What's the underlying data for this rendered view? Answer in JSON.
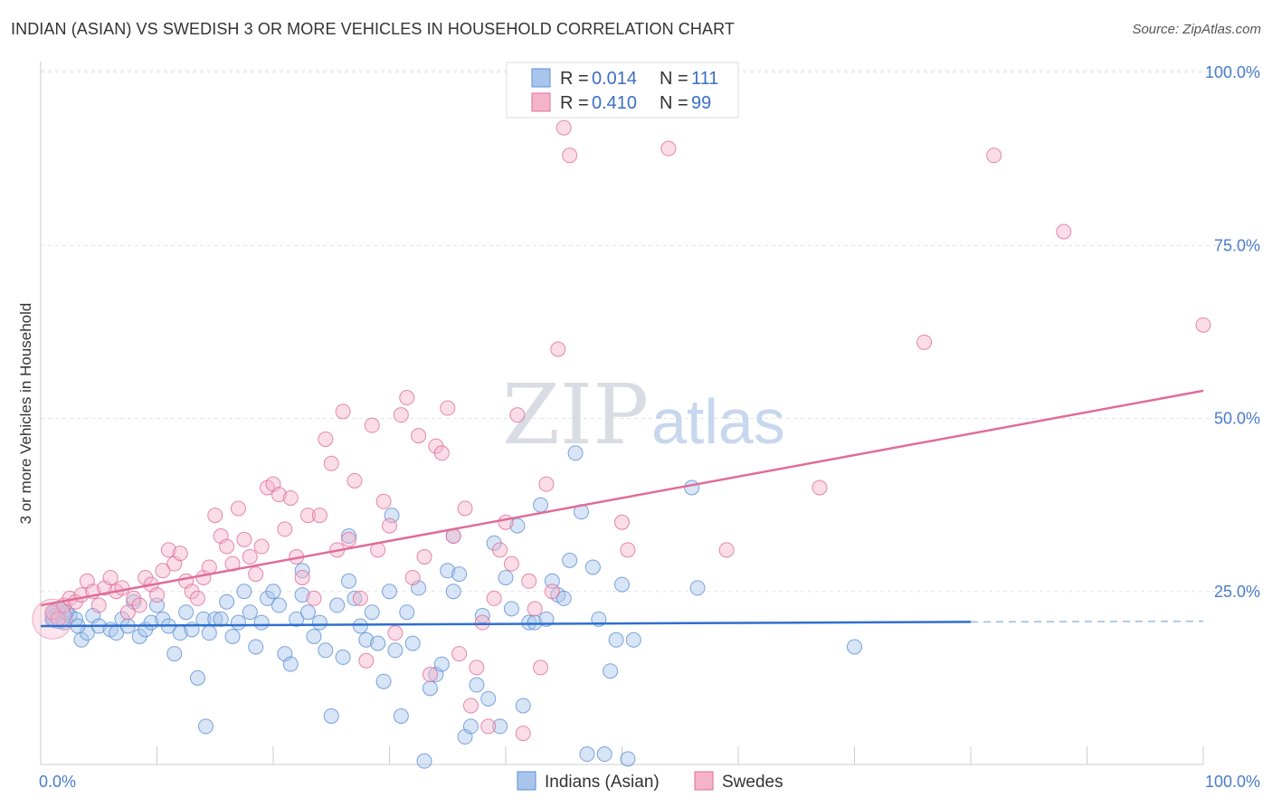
{
  "title": "INDIAN (ASIAN) VS SWEDISH 3 OR MORE VEHICLES IN HOUSEHOLD CORRELATION CHART",
  "source": "Source: ZipAtlas.com",
  "watermark": {
    "zip": "ZIP",
    "atlas": "atlas"
  },
  "colors": {
    "blue": "#5b8fd6",
    "blue_fill": "#a9c5ec",
    "pink": "#e06c98",
    "pink_fill": "#f4b3c9",
    "axis_text": "#4a7cc9"
  },
  "legend": {
    "row1": {
      "r_label": "R = ",
      "r_value": "0.014",
      "n_label": "N = ",
      "n_value": "111"
    },
    "row2": {
      "r_label": "R = ",
      "r_value": "0.410",
      "n_label": "N = ",
      "n_value": "99"
    }
  },
  "bottom_legend": {
    "series1": "Indians (Asian)",
    "series2": "Swedes"
  },
  "chart_data": {
    "type": "scatter",
    "ylabel": "3 or more Vehicles in Household",
    "x_tick_labels": [
      "0.0%",
      "100.0%"
    ],
    "y_tick_labels": [
      "25.0%",
      "50.0%",
      "75.0%",
      "100.0%"
    ],
    "y_ticks": [
      25,
      50,
      75,
      100
    ],
    "xlim": [
      0,
      100
    ],
    "ylim": [
      0,
      100
    ],
    "grid": true,
    "legend_position": "top-center",
    "series": [
      {
        "name": "Indians (Asian)",
        "color": "#5b8fd6",
        "R": 0.014,
        "N": 111,
        "trend": {
          "x0": 0,
          "y0": 20.0,
          "x1": 80,
          "y1": 20.6,
          "dashed_to": 100,
          "dashed_y": 20.7
        },
        "points": [
          [
            1,
            21
          ],
          [
            1.5,
            22
          ],
          [
            2,
            20.5
          ],
          [
            2.5,
            21.5
          ],
          [
            3,
            21
          ],
          [
            3.5,
            18
          ],
          [
            4,
            19
          ],
          [
            4.5,
            21.5
          ],
          [
            5,
            20
          ],
          [
            6,
            19.5
          ],
          [
            6.5,
            19
          ],
          [
            7,
            21
          ],
          [
            7.5,
            20
          ],
          [
            8,
            23.5
          ],
          [
            8.5,
            18.5
          ],
          [
            9,
            19.5
          ],
          [
            9.5,
            20.5
          ],
          [
            10,
            23
          ],
          [
            10.5,
            21
          ],
          [
            11,
            20
          ],
          [
            11.5,
            16
          ],
          [
            12,
            19
          ],
          [
            12.5,
            22
          ],
          [
            13,
            19.5
          ],
          [
            13.5,
            12.5
          ],
          [
            14,
            21
          ],
          [
            14.5,
            19
          ],
          [
            15,
            21
          ],
          [
            15.5,
            21
          ],
          [
            16,
            23.5
          ],
          [
            16.5,
            18.5
          ],
          [
            17,
            20.5
          ],
          [
            17.5,
            25
          ],
          [
            18,
            22
          ],
          [
            18.5,
            17
          ],
          [
            19,
            20.5
          ],
          [
            19.5,
            24
          ],
          [
            20,
            25
          ],
          [
            20.5,
            23
          ],
          [
            21,
            16
          ],
          [
            21.5,
            14.5
          ],
          [
            22,
            21
          ],
          [
            22.5,
            24.5
          ],
          [
            23,
            22
          ],
          [
            23.5,
            18.5
          ],
          [
            24,
            20.5
          ],
          [
            24.5,
            16.5
          ],
          [
            25,
            7
          ],
          [
            25.5,
            23
          ],
          [
            26,
            15.5
          ],
          [
            26.5,
            26.5
          ],
          [
            27,
            24
          ],
          [
            27.5,
            20
          ],
          [
            28,
            18
          ],
          [
            28.5,
            22
          ],
          [
            29,
            17.5
          ],
          [
            29.5,
            12
          ],
          [
            30,
            25
          ],
          [
            30.5,
            16.5
          ],
          [
            31,
            7
          ],
          [
            31.5,
            22
          ],
          [
            32,
            17.5
          ],
          [
            32.5,
            25.5
          ],
          [
            33,
            0.5
          ],
          [
            33.5,
            11
          ],
          [
            34,
            13
          ],
          [
            34.5,
            14.5
          ],
          [
            35,
            28
          ],
          [
            35.5,
            25
          ],
          [
            36,
            27.5
          ],
          [
            36.5,
            4
          ],
          [
            37,
            5.5
          ],
          [
            37.5,
            11.5
          ],
          [
            38,
            21.5
          ],
          [
            38.5,
            9.5
          ],
          [
            39,
            32
          ],
          [
            39.5,
            5.5
          ],
          [
            40,
            27
          ],
          [
            40.5,
            22.5
          ],
          [
            41,
            34.5
          ],
          [
            41.5,
            8.5
          ],
          [
            42,
            20.5
          ],
          [
            42.5,
            20.5
          ],
          [
            43,
            37.5
          ],
          [
            43.5,
            21
          ],
          [
            44,
            26.5
          ],
          [
            44.5,
            24.5
          ],
          [
            45,
            24
          ],
          [
            45.5,
            29.5
          ],
          [
            46,
            45
          ],
          [
            46.5,
            36.5
          ],
          [
            47,
            1.5
          ],
          [
            47.5,
            28.5
          ],
          [
            48,
            21
          ],
          [
            48.5,
            1.5
          ],
          [
            49,
            13.5
          ],
          [
            49.5,
            18
          ],
          [
            50,
            26
          ],
          [
            50.5,
            0.8
          ],
          [
            51,
            18
          ],
          [
            1.2,
            21.5
          ],
          [
            2.2,
            22
          ],
          [
            3.2,
            20
          ],
          [
            14.2,
            5.5
          ],
          [
            22.5,
            28
          ],
          [
            26.5,
            33
          ],
          [
            30.2,
            36
          ],
          [
            35.5,
            33
          ],
          [
            56,
            40
          ],
          [
            56.5,
            25.5
          ],
          [
            70,
            17
          ]
        ]
      },
      {
        "name": "Swedes",
        "color": "#e06c98",
        "R": 0.41,
        "N": 99,
        "trend": {
          "x0": 0,
          "y0": 23.0,
          "x1": 100,
          "y1": 54.0
        },
        "points": [
          [
            1,
            22
          ],
          [
            1.5,
            21
          ],
          [
            2,
            23
          ],
          [
            2.5,
            24
          ],
          [
            3,
            23.5
          ],
          [
            3.5,
            24.5
          ],
          [
            4,
            26.5
          ],
          [
            4.5,
            25
          ],
          [
            5,
            23
          ],
          [
            5.5,
            25.5
          ],
          [
            6,
            27
          ],
          [
            6.5,
            25
          ],
          [
            7,
            25.5
          ],
          [
            7.5,
            22
          ],
          [
            8,
            24
          ],
          [
            8.5,
            23
          ],
          [
            9,
            27
          ],
          [
            9.5,
            26
          ],
          [
            10,
            24.5
          ],
          [
            10.5,
            28
          ],
          [
            11,
            31
          ],
          [
            11.5,
            29
          ],
          [
            12,
            30.5
          ],
          [
            12.5,
            26.5
          ],
          [
            13,
            25
          ],
          [
            13.5,
            24
          ],
          [
            14,
            27
          ],
          [
            14.5,
            28.5
          ],
          [
            15,
            36
          ],
          [
            15.5,
            33
          ],
          [
            16,
            31.5
          ],
          [
            16.5,
            29
          ],
          [
            17,
            37
          ],
          [
            17.5,
            32.5
          ],
          [
            18,
            30
          ],
          [
            18.5,
            27.5
          ],
          [
            19,
            31.5
          ],
          [
            19.5,
            40
          ],
          [
            20,
            40.5
          ],
          [
            20.5,
            39
          ],
          [
            21,
            34
          ],
          [
            21.5,
            38.5
          ],
          [
            22,
            30
          ],
          [
            22.5,
            27
          ],
          [
            23,
            36
          ],
          [
            23.5,
            24
          ],
          [
            24,
            36
          ],
          [
            24.5,
            47
          ],
          [
            25,
            43.5
          ],
          [
            25.5,
            31
          ],
          [
            26,
            51
          ],
          [
            26.5,
            32.5
          ],
          [
            27,
            41
          ],
          [
            27.5,
            24
          ],
          [
            28,
            15
          ],
          [
            28.5,
            49
          ],
          [
            29,
            31
          ],
          [
            29.5,
            38
          ],
          [
            30,
            34.5
          ],
          [
            30.5,
            19
          ],
          [
            31,
            50.5
          ],
          [
            31.5,
            53
          ],
          [
            32,
            27
          ],
          [
            32.5,
            47.5
          ],
          [
            33,
            30
          ],
          [
            33.5,
            13
          ],
          [
            34,
            46
          ],
          [
            34.5,
            45
          ],
          [
            35,
            51.5
          ],
          [
            35.5,
            33
          ],
          [
            36,
            16
          ],
          [
            36.5,
            37
          ],
          [
            37,
            8.5
          ],
          [
            37.5,
            14
          ],
          [
            38,
            20.5
          ],
          [
            38.5,
            5.5
          ],
          [
            39,
            24
          ],
          [
            39.5,
            31
          ],
          [
            40,
            35
          ],
          [
            40.5,
            29
          ],
          [
            41,
            50.5
          ],
          [
            41.5,
            4.5
          ],
          [
            42,
            26.5
          ],
          [
            42.5,
            22.5
          ],
          [
            43,
            14
          ],
          [
            43.5,
            40.5
          ],
          [
            44,
            25
          ],
          [
            44.5,
            60
          ],
          [
            45,
            92
          ],
          [
            45.5,
            88
          ],
          [
            50,
            35
          ],
          [
            50.5,
            31
          ],
          [
            54,
            89
          ],
          [
            59,
            31
          ],
          [
            67,
            40
          ],
          [
            76,
            61
          ],
          [
            82,
            88
          ],
          [
            88,
            77
          ],
          [
            100,
            63.5
          ]
        ]
      }
    ]
  }
}
